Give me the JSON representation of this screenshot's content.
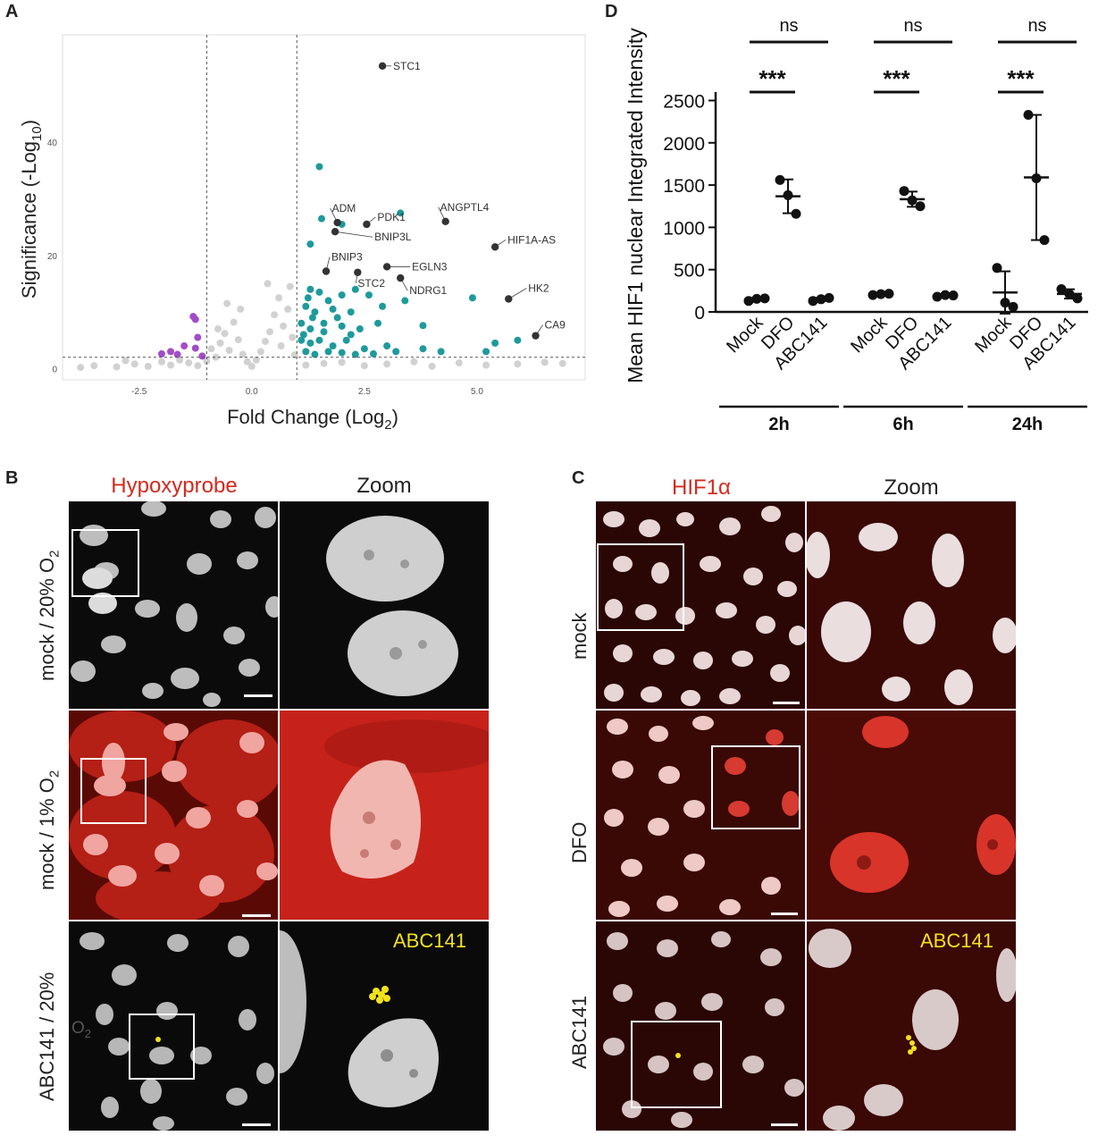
{
  "panels": {
    "A": {
      "letter": "A",
      "chart_data": {
        "type": "scatter",
        "xlabel": "Fold Change (Log",
        "xlabel_sub": "2",
        "xlabel_end": ")",
        "ylabel": "Significance (-Log",
        "ylabel_sub": "10",
        "ylabel_end": ")",
        "xlim": [
          -4.2,
          7.4
        ],
        "ylim": [
          -2,
          59
        ],
        "x_ticks": [
          -2.5,
          0.0,
          2.5,
          5.0
        ],
        "x_tick_labels": [
          "-2.5",
          "0.0",
          "2.5",
          "5.0"
        ],
        "y_ticks": [
          0,
          20,
          40
        ],
        "y_tick_labels": [
          "0",
          "20",
          "40"
        ],
        "thresholds": {
          "x": [
            -1,
            1
          ],
          "y": 2
        },
        "colors": {
          "ns": "#c9c9c9",
          "down": "#a24cc9",
          "up": "#1f9a9c",
          "labeled": "#333333"
        },
        "labeled_genes": [
          {
            "name": "STC1",
            "x": 2.9,
            "y": 53.5
          },
          {
            "name": "ANGPTL4",
            "x": 4.3,
            "y": 26
          },
          {
            "name": "ADM",
            "x": 1.9,
            "y": 25.8
          },
          {
            "name": "PDK1",
            "x": 2.55,
            "y": 25.5
          },
          {
            "name": "BNIP3L",
            "x": 1.85,
            "y": 24.2
          },
          {
            "name": "HIF1A-AS",
            "x": 5.4,
            "y": 21.5
          },
          {
            "name": "BNIP3",
            "x": 1.65,
            "y": 17.2
          },
          {
            "name": "EGLN3",
            "x": 3.0,
            "y": 18
          },
          {
            "name": "STC2",
            "x": 2.35,
            "y": 17
          },
          {
            "name": "NDRG1",
            "x": 3.3,
            "y": 16
          },
          {
            "name": "HK2",
            "x": 5.7,
            "y": 12.3
          },
          {
            "name": "CA9",
            "x": 6.3,
            "y": 5.8
          }
        ],
        "up_points": [
          [
            1.5,
            35.7
          ],
          [
            1.55,
            26.5
          ],
          [
            2.0,
            25.5
          ],
          [
            3.3,
            27.5
          ],
          [
            1.3,
            22
          ],
          [
            1.3,
            14
          ],
          [
            1.5,
            13.5
          ],
          [
            1.7,
            12
          ],
          [
            2.0,
            13
          ],
          [
            2.3,
            14
          ],
          [
            2.6,
            13
          ],
          [
            1.2,
            11
          ],
          [
            1.4,
            10
          ],
          [
            1.8,
            10.5
          ],
          [
            2.2,
            10
          ],
          [
            2.9,
            11
          ],
          [
            3.4,
            12
          ],
          [
            1.1,
            8
          ],
          [
            1.3,
            7
          ],
          [
            1.6,
            8
          ],
          [
            2.0,
            7.5
          ],
          [
            2.4,
            7
          ],
          [
            2.8,
            8
          ],
          [
            3.8,
            7.6
          ],
          [
            1.1,
            5
          ],
          [
            1.3,
            4.5
          ],
          [
            1.5,
            5
          ],
          [
            1.8,
            4
          ],
          [
            2.1,
            5
          ],
          [
            2.5,
            3.5
          ],
          [
            3.2,
            3
          ],
          [
            4.2,
            3
          ],
          [
            5.2,
            3
          ],
          [
            5.4,
            4.5
          ],
          [
            5.9,
            5
          ],
          [
            4.9,
            12.5
          ],
          [
            1.2,
            3
          ],
          [
            1.4,
            2.5
          ],
          [
            1.7,
            3
          ],
          [
            2.0,
            2.8
          ],
          [
            2.3,
            2.5
          ],
          [
            2.7,
            2.6
          ],
          [
            3.0,
            4
          ],
          [
            3.8,
            3.5
          ],
          [
            1.15,
            6
          ],
          [
            1.35,
            9
          ],
          [
            1.6,
            6.5
          ],
          [
            1.9,
            9
          ],
          [
            2.2,
            6
          ],
          [
            1.25,
            12.5
          ]
        ],
        "down_points": [
          [
            -1.3,
            9.2
          ],
          [
            -1.25,
            8.7
          ],
          [
            -1.2,
            5.5
          ],
          [
            -1.5,
            4
          ],
          [
            -1.8,
            3
          ],
          [
            -2.0,
            2.6
          ],
          [
            -1.65,
            2.5
          ],
          [
            -1.25,
            3.6
          ],
          [
            -1.1,
            2.2
          ]
        ],
        "ns_points": [
          [
            -3.5,
            0.5
          ],
          [
            -3.0,
            0.3
          ],
          [
            -2.6,
            0.8
          ],
          [
            -2.3,
            0.4
          ],
          [
            -2.0,
            1.2
          ],
          [
            -1.8,
            0.6
          ],
          [
            -1.6,
            1.5
          ],
          [
            -1.4,
            1.0
          ],
          [
            -1.2,
            0.5
          ],
          [
            -1.0,
            1.3
          ],
          [
            -0.9,
            3.5
          ],
          [
            -0.8,
            2.0
          ],
          [
            -0.7,
            4.5
          ],
          [
            -0.6,
            6.2
          ],
          [
            -0.5,
            3.2
          ],
          [
            -0.4,
            8.2
          ],
          [
            -0.3,
            5.1
          ],
          [
            -0.2,
            2.5
          ],
          [
            -0.1,
            1.2
          ],
          [
            0.0,
            0.4
          ],
          [
            0.1,
            1.5
          ],
          [
            0.2,
            3.0
          ],
          [
            0.3,
            4.8
          ],
          [
            0.4,
            6.5
          ],
          [
            0.5,
            9.5
          ],
          [
            0.6,
            12.5
          ],
          [
            0.7,
            7.5
          ],
          [
            0.8,
            10.5
          ],
          [
            0.9,
            5.5
          ],
          [
            0.85,
            14.5
          ],
          [
            -0.55,
            11.5
          ],
          [
            0.95,
            2.4
          ],
          [
            1.2,
            0.6
          ],
          [
            1.6,
            0.9
          ],
          [
            2.0,
            1.1
          ],
          [
            2.5,
            0.5
          ],
          [
            3.0,
            0.8
          ],
          [
            3.6,
            1.2
          ],
          [
            4.0,
            0.4
          ],
          [
            4.6,
            1.0
          ],
          [
            5.2,
            0.6
          ],
          [
            5.9,
            0.8
          ],
          [
            6.5,
            1.1
          ],
          [
            6.9,
            0.9
          ],
          [
            -3.8,
            0.2
          ],
          [
            -2.8,
            1.4
          ],
          [
            -0.25,
            10.5
          ],
          [
            0.35,
            15
          ],
          [
            -0.75,
            7
          ],
          [
            0.65,
            4
          ]
        ]
      }
    },
    "B": {
      "letter": "B",
      "headers": [
        "Hypoxyprobe",
        "Zoom"
      ],
      "rows": [
        {
          "label": "mock / 20% O",
          "sub": "2"
        },
        {
          "label": "mock / 1% O",
          "sub": "2"
        },
        {
          "label": "ABC141 / 20%",
          "sub": ""
        }
      ],
      "overlay_text": "ABC141",
      "overlay_extra": "O",
      "overlay_extra_sub": "2"
    },
    "C": {
      "letter": "C",
      "headers": [
        "HIF1α",
        "Zoom"
      ],
      "rows": [
        "mock",
        "DFO",
        "ABC141"
      ],
      "overlay_text": "ABC141"
    },
    "D": {
      "letter": "D",
      "chart_data": {
        "type": "scatter",
        "ylabel": "Mean HIF1 nuclear Integrated Intensity",
        "ylim": [
          0,
          2600
        ],
        "y_ticks": [
          0,
          500,
          1000,
          1500,
          2000,
          2500
        ],
        "y_tick_labels": [
          "0",
          "500",
          "1000",
          "1500",
          "2000",
          "2500"
        ],
        "categories": [
          "Mock",
          "DFO",
          "ABC141",
          "Mock",
          "DFO",
          "ABC141",
          "Mock",
          "DFO",
          "ABC141"
        ],
        "groups": [
          {
            "name": "2h",
            "conditions": [
              {
                "label": "Mock",
                "points": [
                  130,
                  155,
                  160
                ],
                "mean": 148,
                "sd": 15
              },
              {
                "label": "DFO",
                "points": [
                  1560,
                  1380,
                  1160
                ],
                "mean": 1367,
                "sd": 200
              },
              {
                "label": "ABC141",
                "points": [
                  130,
                  150,
                  165
                ],
                "mean": 148,
                "sd": 18
              }
            ]
          },
          {
            "name": "6h",
            "conditions": [
              {
                "label": "Mock",
                "points": [
                  200,
                  210,
                  215
                ],
                "mean": 208,
                "sd": 8
              },
              {
                "label": "DFO",
                "points": [
                  1430,
                  1320,
                  1250
                ],
                "mean": 1333,
                "sd": 90
              },
              {
                "label": "ABC141",
                "points": [
                  180,
                  200,
                  195
                ],
                "mean": 192,
                "sd": 10
              }
            ]
          },
          {
            "name": "24h",
            "conditions": [
              {
                "label": "Mock",
                "points": [
                  520,
                  110,
                  60
                ],
                "mean": 230,
                "sd": 250
              },
              {
                "label": "DFO",
                "points": [
                  2330,
                  1580,
                  850
                ],
                "mean": 1590,
                "sd": 740
              },
              {
                "label": "ABC141",
                "points": [
                  270,
                  210,
                  160
                ],
                "mean": 213,
                "sd": 55
              }
            ]
          }
        ],
        "significance": [
          {
            "group": "2h",
            "pair": [
              "Mock",
              "DFO"
            ],
            "label": "***"
          },
          {
            "group": "2h",
            "pair": [
              "Mock",
              "ABC141"
            ],
            "label": "ns"
          },
          {
            "group": "6h",
            "pair": [
              "Mock",
              "DFO"
            ],
            "label": "***"
          },
          {
            "group": "6h",
            "pair": [
              "Mock",
              "ABC141"
            ],
            "label": "ns"
          },
          {
            "group": "24h",
            "pair": [
              "Mock",
              "DFO"
            ],
            "label": "***"
          },
          {
            "group": "24h",
            "pair": [
              "Mock",
              "ABC141"
            ],
            "label": "ns"
          }
        ]
      }
    }
  },
  "colors": {
    "red_stain": "#d42a1e",
    "yellow_label": "#f2e21c",
    "nucleus": "#d6d6d6"
  }
}
